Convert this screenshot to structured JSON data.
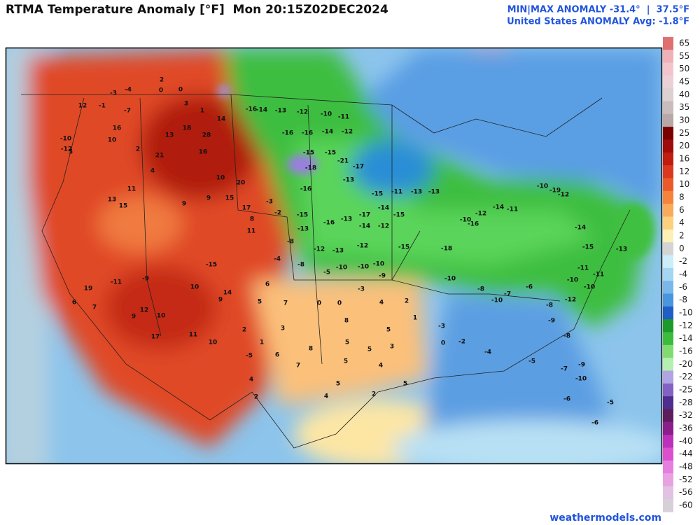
{
  "header": {
    "title": "RTMA Temperature Anomaly [°F]  Mon 20:15Z02DEC2024",
    "minmax": "MIN|MAX ANOMALY -31.4°  |  37.5°F",
    "average": "United States ANOMALY Avg: -1.8°F"
  },
  "colorbar": {
    "ticks": [
      65,
      55,
      50,
      45,
      40,
      35,
      30,
      25,
      20,
      16,
      12,
      10,
      8,
      6,
      4,
      2,
      0,
      -2,
      -4,
      -6,
      -8,
      -10,
      -12,
      -14,
      -16,
      -20,
      -22,
      -25,
      -28,
      -32,
      -36,
      -40,
      -44,
      -48,
      -52,
      -56,
      -60
    ],
    "colors": [
      "#e07070",
      "#f0b0b8",
      "#f4c4cc",
      "#ecd0d8",
      "#dcd0d0",
      "#c8bcbc",
      "#b8a8a8",
      "#7a0000",
      "#a00c0c",
      "#c01c10",
      "#dc3820",
      "#ec5a2c",
      "#f6823c",
      "#fbaa5c",
      "#fdd07e",
      "#fdf0b4",
      "#d4d4d4",
      "#cceef8",
      "#a4d6f2",
      "#78b8ea",
      "#4896e0",
      "#1e5ec6",
      "#1c9a2c",
      "#3cbc3c",
      "#80dc70",
      "#b4f0b0",
      "#b0a4e4",
      "#8462c4",
      "#4e2e8e",
      "#5e1e5e",
      "#8c1e8c",
      "#bc30bc",
      "#dc50d0",
      "#e67ee0",
      "#e8a2e2",
      "#e2c2e2",
      "#d8d0d8"
    ]
  },
  "map": {
    "labels": [
      0,
      -4,
      -3,
      2,
      0,
      12,
      -1,
      3,
      -7,
      14,
      1,
      18,
      28,
      16,
      13,
      10,
      2,
      21,
      16,
      -12,
      -10,
      5,
      4,
      10,
      20,
      11,
      13,
      15,
      9,
      15,
      17,
      9,
      8,
      11,
      -16,
      -14,
      -13,
      -12,
      -10,
      -11,
      -16,
      -16,
      -14,
      -12,
      -15,
      -15,
      -18,
      -21,
      -17,
      -13,
      -16,
      -15,
      -11,
      -13,
      -13,
      -15,
      -16,
      -13,
      -14,
      -12,
      -13,
      -12,
      -13,
      -12,
      -15,
      -18,
      -16,
      -17,
      -14,
      -15,
      -10,
      -12,
      -14,
      -11,
      -10,
      -19,
      -12,
      -14,
      -15,
      -13,
      -11,
      -11,
      -10,
      -10,
      -12,
      -8,
      -9,
      -8,
      -7,
      -9,
      -10,
      -6,
      -5,
      -6,
      -5,
      -4,
      -2,
      0,
      -3,
      1,
      3,
      2,
      4,
      -3,
      0,
      0,
      7,
      5,
      6,
      3,
      2,
      1,
      8,
      6,
      7,
      5,
      5,
      4,
      5,
      5,
      8,
      5,
      4,
      2,
      5,
      9,
      12,
      10,
      17,
      11,
      10,
      -5,
      4,
      2,
      -9,
      -11,
      19,
      6,
      7,
      10,
      9,
      14,
      -15,
      -3,
      -2,
      -8,
      -4,
      -8,
      -5,
      -10,
      -10,
      -10,
      -9,
      -10,
      -8,
      -10,
      -7,
      -6
    ]
  },
  "footer": "weathermodels.com"
}
